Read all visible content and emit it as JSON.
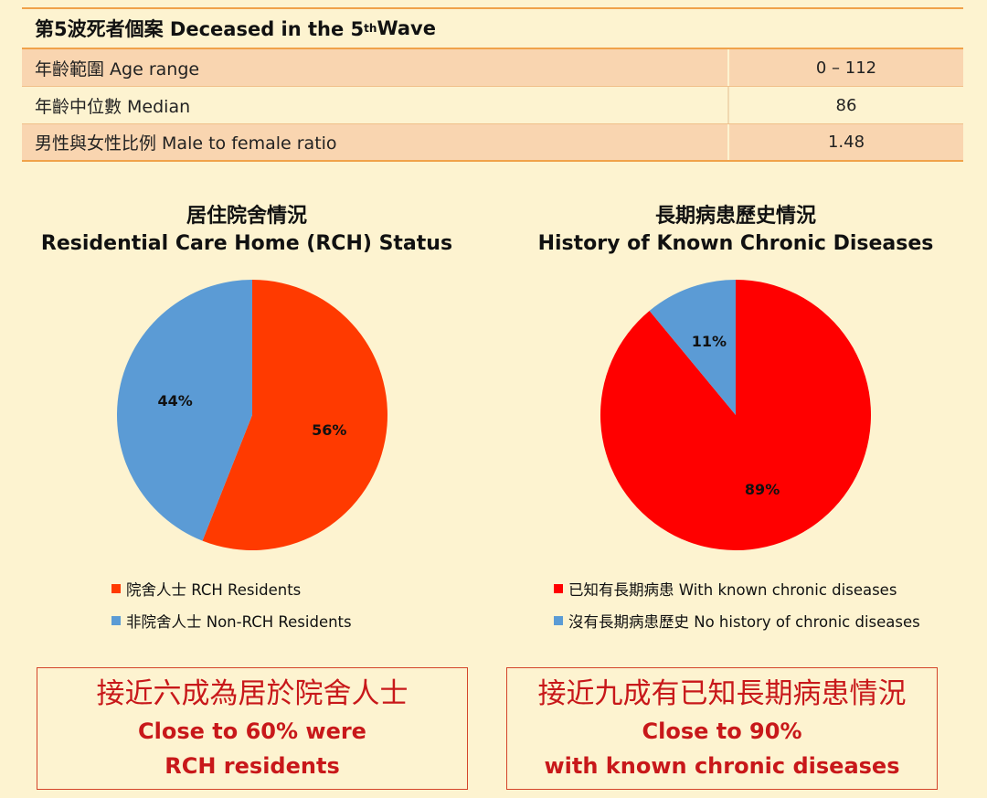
{
  "table": {
    "title": "第5波死者個案 Deceased in the 5",
    "title_sup": "th",
    "title_suffix": " Wave",
    "rows": [
      {
        "label": "年齡範圍 Age range",
        "value": "0 – 112"
      },
      {
        "label": "年齡中位數 Median",
        "value": "86"
      },
      {
        "label": "男性與女性比例 Male to female ratio",
        "value": "1.48"
      }
    ]
  },
  "chart_data": [
    {
      "type": "pie",
      "title_zh": "居住院舍情況",
      "title_en": "Residential Care Home (RCH) Status",
      "slices": [
        {
          "label": "院舍人士 RCH Residents",
          "value": 56,
          "display": "56%",
          "color": "#ff3a00"
        },
        {
          "label": "非院舍人士 Non-RCH Residents",
          "value": 44,
          "display": "44%",
          "color": "#5b9bd5"
        }
      ],
      "legend_position": "bottom"
    },
    {
      "type": "pie",
      "title_zh": "長期病患歷史情況",
      "title_en": "History of Known Chronic Diseases",
      "slices": [
        {
          "label": "已知有長期病患 With known chronic diseases",
          "value": 89,
          "display": "89%",
          "color": "#ff0000"
        },
        {
          "label": "沒有長期病患歷史 No history of chronic diseases",
          "value": 11,
          "display": "11%",
          "color": "#5b9bd5"
        }
      ],
      "legend_position": "bottom"
    }
  ],
  "callouts": [
    {
      "zh": "接近六成為居於院舍人士",
      "en1": "Close to 60% were",
      "en2": "RCH residents"
    },
    {
      "zh": "接近九成有已知長期病患情況",
      "en1": "Close to 90%",
      "en2": "with known chronic diseases"
    }
  ]
}
